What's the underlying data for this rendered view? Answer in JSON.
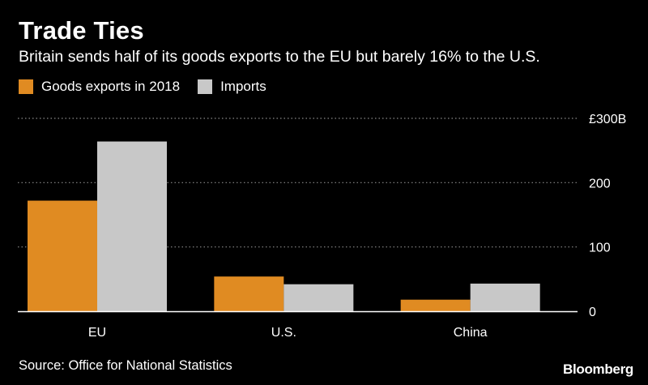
{
  "header": {
    "title": "Trade Ties",
    "subtitle": "Britain sends half of its goods exports to the EU but barely 16% to the U.S."
  },
  "footer": {
    "source": "Source: Office for National Statistics",
    "brand": "Bloomberg"
  },
  "colors": {
    "background": "#000000",
    "exports": "#E08B22",
    "imports": "#C8C8C8",
    "grid": "#8A8A8A",
    "axis": "#FFFFFF"
  },
  "chart_data": {
    "type": "bar",
    "title": "Trade Ties",
    "subtitle": "Britain sends half of its goods exports to the EU but barely 16% to the U.S.",
    "categories": [
      "EU",
      "U.S.",
      "China"
    ],
    "series": [
      {
        "name": "Goods exports in 2018",
        "values": [
          172,
          54,
          18
        ]
      },
      {
        "name": "Imports",
        "values": [
          264,
          42,
          43
        ]
      }
    ],
    "ylim": [
      0,
      300
    ],
    "yticks": [
      0,
      100,
      200,
      300
    ],
    "ytick_labels": [
      "0",
      "100",
      "200",
      "£300B"
    ],
    "xlabel": "",
    "ylabel": "",
    "grid": true,
    "legend_position": "top-left"
  }
}
